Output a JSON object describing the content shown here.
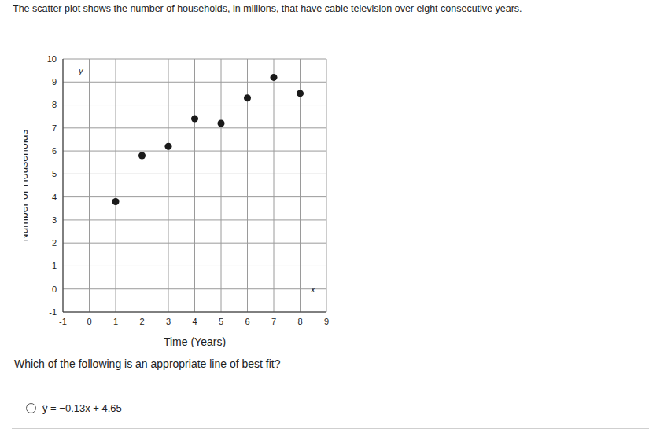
{
  "chart_data": {
    "type": "scatter",
    "title": "The scatter plot shows the number of households, in millions, that have cable television over eight consecutive years.",
    "x_label": "Time (Years)",
    "y_label": "Number of Households",
    "x_axis_letter": "x",
    "y_axis_letter": "y",
    "annotations": [
      "Which of the following is an appropriate line of best fit?",
      "ŷ = −0.13x + 4.65"
    ],
    "x": [
      1,
      2,
      3,
      4,
      5,
      6,
      7,
      8
    ],
    "values": [
      3.8,
      5.8,
      6.2,
      7.4,
      7.2,
      8.3,
      9.2,
      8.5
    ],
    "color": "#1a1a1a",
    "marker": "circle",
    "xlim": [
      -1,
      9
    ],
    "xticks": [
      -1,
      0,
      1,
      2,
      3,
      4,
      5,
      6,
      7,
      8,
      9
    ],
    "ylim": [
      -1,
      10
    ],
    "yticks": [
      -1,
      0,
      1,
      2,
      3,
      4,
      5,
      6,
      7,
      8,
      9,
      10
    ],
    "grid": true
  }
}
